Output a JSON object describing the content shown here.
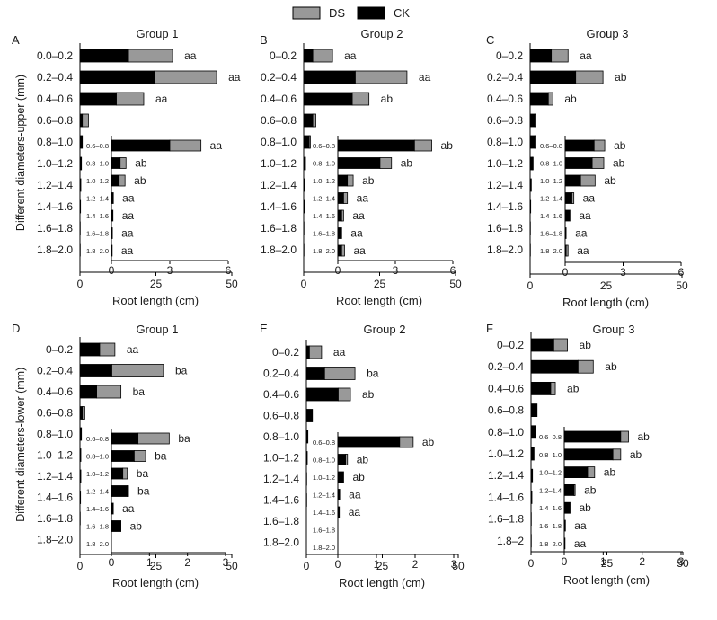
{
  "legend": [
    {
      "name": "DS",
      "color": "#999999"
    },
    {
      "name": "CK",
      "color": "#000000"
    }
  ],
  "colors": {
    "ds": "#999999",
    "ck": "#000000"
  },
  "chart_data": [
    {
      "type": "bar",
      "orientation": "horizontal",
      "stacked": true,
      "panel": "A",
      "title": "Group 1",
      "ylabel": "Different diameters-upper (mm)",
      "xlabel": "Root length (cm)",
      "xlim": [
        0,
        50
      ],
      "xticks": [
        "0",
        "25",
        "50"
      ],
      "categories": [
        "0.0–0.2",
        "0.2–0.4",
        "0.4–0.6",
        "0.6–0.8",
        "0.8–1.0",
        "1.0–1.2",
        "1.2–1.4",
        "1.4–1.6",
        "1.6–1.8",
        "1.8–2.0"
      ],
      "series": [
        {
          "name": "CK",
          "values": [
            16.0,
            24.5,
            12.0,
            0.8,
            0.8,
            0.5,
            0.3,
            0.2,
            0.1,
            0.1
          ]
        },
        {
          "name": "DS",
          "values": [
            14.5,
            20.5,
            9.0,
            2.0,
            0,
            0,
            0,
            0,
            0,
            0
          ]
        }
      ],
      "labels": [
        "aa",
        "aa",
        "aa",
        "",
        "",
        "",
        "",
        "",
        "",
        ""
      ],
      "inset": {
        "xlim": [
          0,
          6
        ],
        "xticks": [
          "0",
          "3",
          "6"
        ],
        "categories": [
          "0.6–0.8",
          "0.8–1.0",
          "1.0–1.2",
          "1.2–1.4",
          "1.4–1.6",
          "1.6–1.8",
          "1.8–2.0"
        ],
        "series": [
          {
            "name": "CK",
            "values": [
              3.0,
              0.45,
              0.4,
              0.1,
              0.08,
              0.05,
              0.04
            ]
          },
          {
            "name": "DS",
            "values": [
              1.6,
              0.3,
              0.3,
              0,
              0,
              0,
              0
            ]
          }
        ],
        "labels": [
          "aa",
          "ab",
          "ab",
          "aa",
          "aa",
          "aa",
          "aa"
        ]
      }
    },
    {
      "type": "bar",
      "orientation": "horizontal",
      "stacked": true,
      "panel": "B",
      "title": "Group 2",
      "xlabel": "Root length (cm)",
      "xlim": [
        0,
        50
      ],
      "xticks": [
        "0",
        "25",
        "50"
      ],
      "categories": [
        "0–0.2",
        "0.2–0.4",
        "0.4–0.6",
        "0.6–0.8",
        "0.8–1.0",
        "1.0–1.2",
        "1.2–1.4",
        "1.4–1.6",
        "1.6–1.8",
        "1.8–2.0"
      ],
      "series": [
        {
          "name": "CK",
          "values": [
            3.0,
            17.0,
            16.0,
            3.0,
            1.8,
            0.6,
            0.3,
            0.2,
            0.1,
            0.1
          ]
        },
        {
          "name": "DS",
          "values": [
            6.5,
            17.0,
            5.5,
            1.0,
            0.4,
            0,
            0,
            0,
            0,
            0
          ]
        }
      ],
      "labels": [
        "aa",
        "aa",
        "ab",
        "",
        "",
        "",
        "",
        "",
        "",
        ""
      ],
      "inset": {
        "xlim": [
          0,
          6
        ],
        "xticks": [
          "0",
          "3",
          "6"
        ],
        "categories": [
          "0.6–0.8",
          "0.8–1.0",
          "1.0–1.2",
          "1.2–1.4",
          "1.4–1.6",
          "1.6–1.8",
          "1.8–2.0"
        ],
        "series": [
          {
            "name": "CK",
            "values": [
              4.0,
              2.2,
              0.5,
              0.3,
              0.2,
              0.15,
              0.2
            ]
          },
          {
            "name": "DS",
            "values": [
              0.9,
              0.6,
              0.3,
              0.2,
              0.1,
              0.05,
              0.15
            ]
          }
        ],
        "labels": [
          "ab",
          "ab",
          "ab",
          "aa",
          "aa",
          "aa",
          "aa"
        ]
      }
    },
    {
      "type": "bar",
      "orientation": "horizontal",
      "stacked": true,
      "panel": "C",
      "title": "Group 3",
      "xlabel": "Root length (cm)",
      "xlim": [
        0,
        50
      ],
      "xticks": [
        "0",
        "25",
        "50"
      ],
      "categories": [
        "0–0.2",
        "0.2–0.4",
        "0.4–0.6",
        "0.6–0.8",
        "0.8–1.0",
        "1.0–1.2",
        "1.2–1.4",
        "1.4–1.6",
        "1.6–1.8",
        "1.8–2.0"
      ],
      "series": [
        {
          "name": "CK",
          "values": [
            7.0,
            15.0,
            6.0,
            1.5,
            1.5,
            0.8,
            0.4,
            0.2,
            0.1,
            0.1
          ]
        },
        {
          "name": "DS",
          "values": [
            5.5,
            9.0,
            1.5,
            0.3,
            0.3,
            0.2,
            0,
            0,
            0,
            0
          ]
        }
      ],
      "labels": [
        "aa",
        "ab",
        "ab",
        "",
        "",
        "",
        "",
        "",
        "",
        ""
      ],
      "inset": {
        "xlim": [
          0,
          6
        ],
        "xticks": [
          "0",
          "3",
          "6"
        ],
        "categories": [
          "0.6–0.8",
          "0.8–1.0",
          "1.0–1.2",
          "1.2–1.4",
          "1.4–1.6",
          "1.6–1.8",
          "1.8–2.0"
        ],
        "series": [
          {
            "name": "CK",
            "values": [
              1.5,
              1.4,
              0.8,
              0.35,
              0.25,
              0.05,
              0.05
            ]
          },
          {
            "name": "DS",
            "values": [
              0.55,
              0.6,
              0.75,
              0.1,
              0,
              0,
              0.1
            ]
          }
        ],
        "labels": [
          "ab",
          "ab",
          "ab",
          "aa",
          "aa",
          "aa",
          "aa"
        ]
      }
    },
    {
      "type": "bar",
      "orientation": "horizontal",
      "stacked": true,
      "panel": "D",
      "title": "Group 1",
      "ylabel": "Different diameters-lower (mm)",
      "xlabel": "Root length (cm)",
      "xlim": [
        0,
        50
      ],
      "xticks": [
        "0",
        "25",
        "50"
      ],
      "categories": [
        "0–0.2",
        "0.2–0.4",
        "0.4–0.6",
        "0.6–0.8",
        "0.8–1.0",
        "1.0–1.2",
        "1.2–1.4",
        "1.4–1.6",
        "1.6–1.8",
        "1.8–2.0"
      ],
      "series": [
        {
          "name": "CK",
          "values": [
            6.5,
            10.5,
            5.5,
            0.8,
            0.5,
            0.3,
            0.3,
            0.2,
            0.1,
            0
          ]
        },
        {
          "name": "DS",
          "values": [
            5.0,
            17.0,
            8.0,
            0.8,
            0,
            0,
            0,
            0,
            0,
            0
          ]
        }
      ],
      "labels": [
        "aa",
        "ba",
        "ba",
        "",
        "",
        "",
        "",
        "",
        "",
        ""
      ],
      "inset": {
        "xlim": [
          0,
          3
        ],
        "xticks": [
          "0",
          "1",
          "2",
          "3"
        ],
        "categories": [
          "0.6–0.8",
          "0.8–1.0",
          "1.0–1.2",
          "1.2–1.4",
          "1.4–1.6",
          "1.6–1.8",
          "1.8–2.0"
        ],
        "series": [
          {
            "name": "CK",
            "values": [
              0.7,
              0.6,
              0.3,
              0.42,
              0.05,
              0.25,
              0
            ]
          },
          {
            "name": "DS",
            "values": [
              0.82,
              0.3,
              0.12,
              0.03,
              0,
              0,
              0
            ]
          }
        ],
        "labels": [
          "ba",
          "ba",
          "ba",
          "ba",
          "aa",
          "ab",
          ""
        ]
      }
    },
    {
      "type": "bar",
      "orientation": "horizontal",
      "stacked": true,
      "panel": "E",
      "title": "Group 2",
      "xlabel": "Root length (cm)",
      "xlim": [
        0,
        50
      ],
      "xticks": [
        "0",
        "25",
        "50"
      ],
      "categories": [
        "0–0.2",
        "0.2–0.4",
        "0.4–0.6",
        "0.6–0.8",
        "0.8–1.0",
        "1.0–1.2",
        "1.2–1.4",
        "1.4–1.6",
        "1.6–1.8",
        "1.8–2.0"
      ],
      "series": [
        {
          "name": "CK",
          "values": [
            1.0,
            6.0,
            10.5,
            2.0,
            0.5,
            0.3,
            0.1,
            0.1,
            0,
            0
          ]
        },
        {
          "name": "DS",
          "values": [
            4.0,
            10.0,
            4.0,
            0,
            0,
            0,
            0,
            0,
            0,
            0
          ]
        }
      ],
      "labels": [
        "aa",
        "ba",
        "ab",
        "",
        "",
        "",
        "",
        "",
        "",
        ""
      ],
      "inset": {
        "xlim": [
          0,
          3
        ],
        "xticks": [
          "0",
          "1",
          "2",
          "3"
        ],
        "categories": [
          "0.6–0.8",
          "0.8–1.0",
          "1.0–1.2",
          "1.2–1.4",
          "1.4–1.6",
          "1.6–1.8",
          "1.8–2.0"
        ],
        "series": [
          {
            "name": "CK",
            "values": [
              1.6,
              0.2,
              0.15,
              0.05,
              0.04,
              0,
              0
            ]
          },
          {
            "name": "DS",
            "values": [
              0.35,
              0.05,
              0,
              0,
              0,
              0,
              0
            ]
          }
        ],
        "labels": [
          "ab",
          "ab",
          "ab",
          "aa",
          "aa",
          "",
          ""
        ]
      }
    },
    {
      "type": "bar",
      "orientation": "horizontal",
      "stacked": true,
      "panel": "F",
      "title": "Group 3",
      "xlabel": "Root length (cm)",
      "xlim": [
        0,
        50
      ],
      "xticks": [
        "0",
        "25",
        "50"
      ],
      "categories": [
        "0–0.2",
        "0.2–0.4",
        "0.4–0.6",
        "0.6–0.8",
        "0.8–1.0",
        "1.0–1.2",
        "1.2–1.4",
        "1.4–1.6",
        "1.6–1.8",
        "1.8–2"
      ],
      "series": [
        {
          "name": "CK",
          "values": [
            7.5,
            15.5,
            6.5,
            2.0,
            1.5,
            1.0,
            0.5,
            0.3,
            0.1,
            0.1
          ]
        },
        {
          "name": "DS",
          "values": [
            4.5,
            5.0,
            1.5,
            0,
            0,
            0,
            0,
            0,
            0,
            0
          ]
        }
      ],
      "labels": [
        "ab",
        "ab",
        "ab",
        "",
        "",
        "",
        "",
        "",
        "",
        ""
      ],
      "inset": {
        "xlim": [
          0,
          3
        ],
        "xticks": [
          "0",
          "1",
          "2",
          "3"
        ],
        "categories": [
          "0.6–0.8",
          "0.8–1.0",
          "1.0–1.2",
          "1.2–1.4",
          "1.4–1.6",
          "1.6–1.8",
          "1.8–2.0"
        ],
        "series": [
          {
            "name": "CK",
            "values": [
              1.45,
              1.25,
              0.6,
              0.25,
              0.15,
              0.03,
              0.02
            ]
          },
          {
            "name": "DS",
            "values": [
              0.2,
              0.2,
              0.18,
              0.03,
              0,
              0,
              0
            ]
          }
        ],
        "labels": [
          "ab",
          "ab",
          "ab",
          "ab",
          "ab",
          "aa",
          "aa"
        ]
      }
    }
  ]
}
